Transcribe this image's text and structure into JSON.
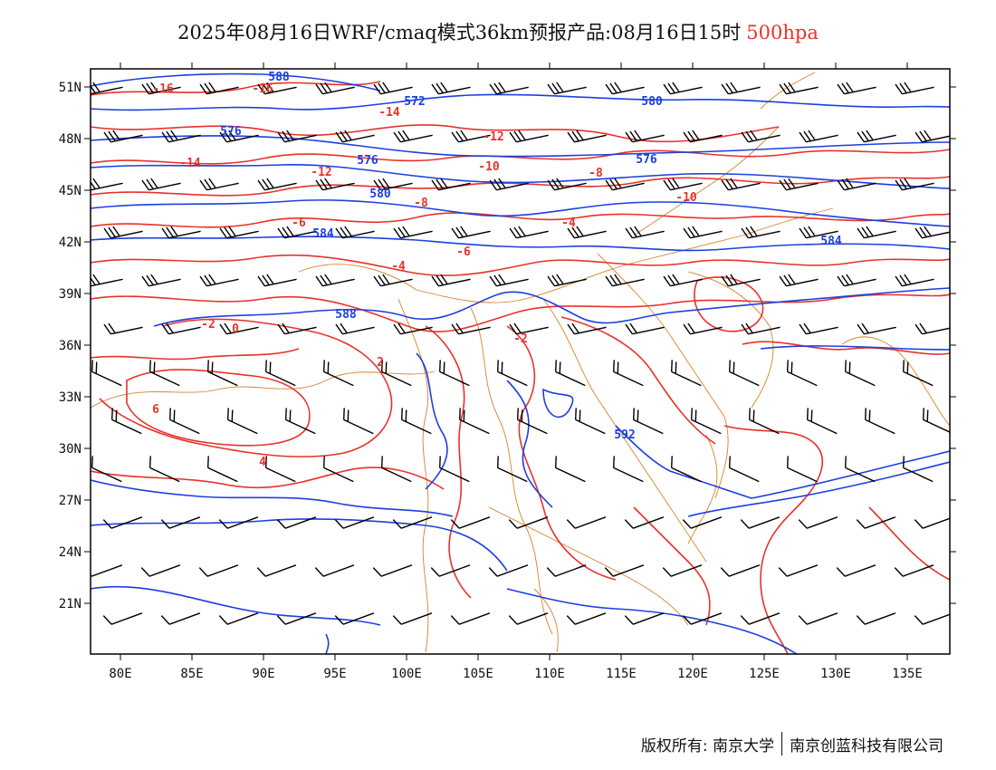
{
  "title": {
    "main": "2025年08月16日WRF/cmaq模式36km预报产品:08月16日15时",
    "level": "500hpa"
  },
  "copyright": {
    "owner_label": "版权所有: 南京大学",
    "company": "南京创蓝科技有限公司"
  },
  "axes": {
    "lon_labels": [
      "80E",
      "85E",
      "90E",
      "95E",
      "100E",
      "105E",
      "110E",
      "115E",
      "120E",
      "125E",
      "130E",
      "135E"
    ],
    "lat_labels": [
      "51N",
      "48N",
      "45N",
      "42N",
      "39N",
      "36N",
      "33N",
      "30N",
      "27N",
      "24N",
      "21N"
    ]
  },
  "colors": {
    "temperature": "#e8322b",
    "geopotential": "#1c3fe0",
    "boundaries": "#d9822b",
    "wind_barbs": "#000000"
  },
  "temperature_labels": [
    "-16",
    "-14",
    "-12",
    "-10",
    "-8",
    "-6",
    "-4",
    "-2",
    "0",
    "2",
    "4",
    "6",
    "-16",
    "-14",
    "-12",
    "-10",
    "-8",
    "-6",
    "-4",
    "-2"
  ],
  "geopotential_labels": [
    "588",
    "576",
    "572",
    "576",
    "580",
    "584",
    "588",
    "592",
    "580",
    "576",
    "584"
  ],
  "layers": [
    "temperature-contours",
    "geopotential-height-contours",
    "wind-barbs",
    "province-boundaries"
  ]
}
